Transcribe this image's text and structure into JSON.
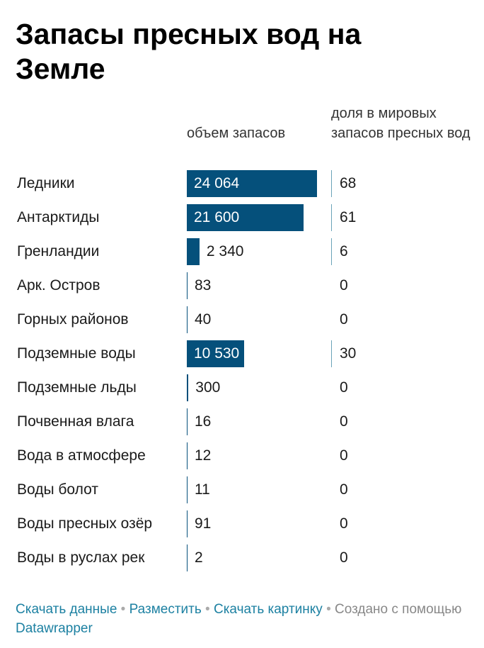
{
  "title": "Запасы пресных вод на Земле",
  "columns": {
    "volume": "объем запасов",
    "share": "доля в мировых запасов пресных вод"
  },
  "colors": {
    "bar": "#05507b",
    "link": "#1d81a2",
    "share_line": "#6aa3b8"
  },
  "chart_data": {
    "type": "bar",
    "orientation": "horizontal",
    "title": "Запасы пресных вод на Земле",
    "categories": [
      "Ледники",
      "Антарктиды",
      "Гренландии",
      "Арк. Остров",
      "Горных районов",
      "Подземные воды",
      "Подземные льды",
      "Почвенная влага",
      "Вода в атмосфере",
      "Воды болот",
      "Воды пресных озёр",
      "Воды в руслах рек"
    ],
    "series": [
      {
        "name": "объем запасов",
        "values": [
          24064,
          21600,
          2340,
          83,
          40,
          10530,
          300,
          16,
          12,
          11,
          91,
          2
        ],
        "labels": [
          "24 064",
          "21 600",
          "2 340",
          "83",
          "40",
          "10 530",
          "300",
          "16",
          "12",
          "11",
          "91",
          "2"
        ]
      },
      {
        "name": "доля в мировых запасов пресных вод",
        "values": [
          68,
          61,
          6,
          0,
          0,
          30,
          0,
          0,
          0,
          0,
          0,
          0
        ],
        "labels": [
          "68",
          "61",
          "6",
          "0",
          "0",
          "30",
          "0",
          "0",
          "0",
          "0",
          "0",
          "0"
        ]
      }
    ],
    "xlim": [
      0,
      24064
    ]
  },
  "footer": {
    "download_data": "Скачать данные",
    "embed": "Разместить",
    "download_image": "Скачать картинку",
    "created_with": "Создано с помощью",
    "brand": "Datawrapper",
    "separator": "•"
  }
}
